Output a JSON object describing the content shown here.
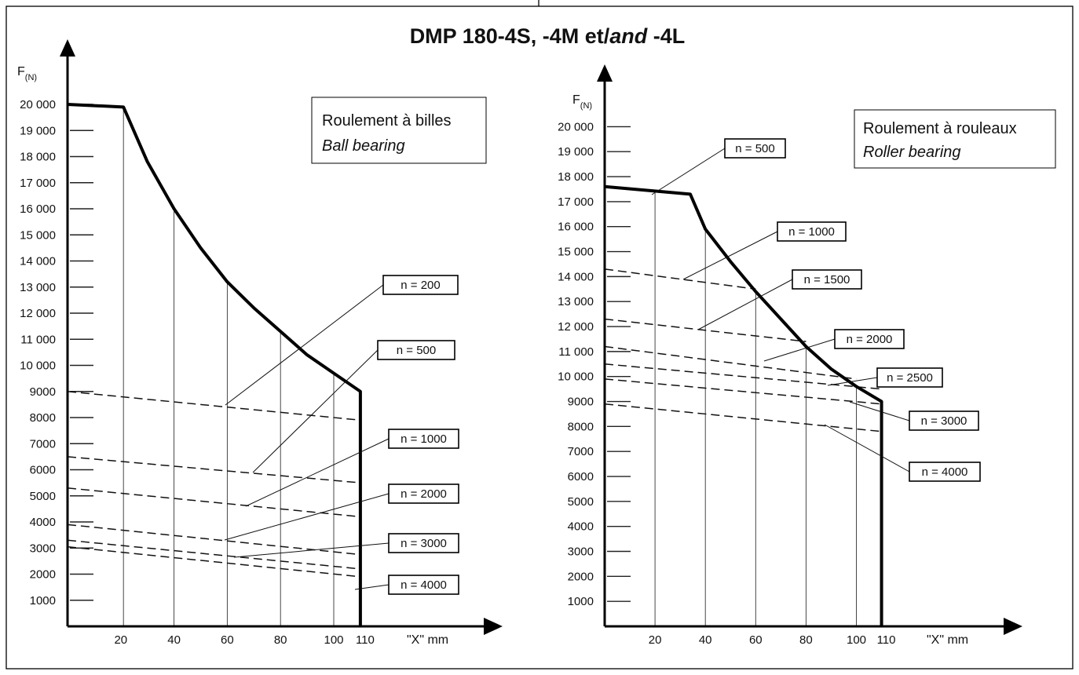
{
  "title_parts": [
    "DMP 180-4S, -4M et/",
    "and",
    " -4L"
  ],
  "chart_data": [
    {
      "type": "line",
      "ylabel_main": "F",
      "ylabel_sub": "(N)",
      "xlabel": "\"X\" mm",
      "legend": [
        "Roulement à billes",
        "Ball bearing"
      ],
      "xlim": [
        0,
        110
      ],
      "ylim": [
        0,
        20000
      ],
      "x_ticks": [
        20,
        40,
        60,
        80,
        100,
        110
      ],
      "y_ticks": [
        1000,
        2000,
        3000,
        4000,
        5000,
        6000,
        7000,
        8000,
        9000,
        10000,
        11000,
        12000,
        13000,
        14000,
        15000,
        16000,
        17000,
        18000,
        19000,
        20000
      ],
      "y_tick_labels": [
        "1000",
        "2000",
        "3000",
        "4000",
        "5000",
        "6000",
        "7000",
        "8000",
        "9000",
        "10 000",
        "11 000",
        "12 000",
        "13 000",
        "14 000",
        "15 000",
        "16 000",
        "17 000",
        "18 000",
        "19 000",
        "20 000"
      ],
      "limit_curve": {
        "name": "",
        "x": [
          0,
          21,
          30,
          40,
          50,
          60,
          70,
          80,
          90,
          100,
          110,
          110
        ],
        "y": [
          20000,
          19900,
          17800,
          16000,
          14500,
          13200,
          12200,
          11300,
          10400,
          9700,
          9000,
          0
        ]
      },
      "series": [
        {
          "name": "n = 200",
          "x": [
            0,
            110
          ],
          "y": [
            9000,
            7900
          ]
        },
        {
          "name": "n = 500",
          "x": [
            0,
            110
          ],
          "y": [
            6500,
            5500
          ]
        },
        {
          "name": "n = 1000",
          "x": [
            0,
            110
          ],
          "y": [
            5300,
            4200
          ]
        },
        {
          "name": "n = 2000",
          "x": [
            0,
            110
          ],
          "y": [
            3900,
            2750
          ]
        },
        {
          "name": "n = 3000",
          "x": [
            0,
            110
          ],
          "y": [
            3300,
            2200
          ]
        },
        {
          "name": "n = 4000",
          "x": [
            0,
            110
          ],
          "y": [
            3050,
            1900
          ]
        }
      ],
      "gridlines_x": [
        21,
        40,
        60,
        80,
        100
      ]
    },
    {
      "type": "line",
      "ylabel_main": "F",
      "ylabel_sub": "(N)",
      "xlabel": "\"X\" mm",
      "legend": [
        "Roulement à rouleaux",
        "Roller bearing"
      ],
      "xlim": [
        0,
        110
      ],
      "ylim": [
        0,
        20000
      ],
      "x_ticks": [
        20,
        40,
        60,
        80,
        100,
        110
      ],
      "y_ticks": [
        1000,
        2000,
        3000,
        4000,
        5000,
        6000,
        7000,
        8000,
        9000,
        10000,
        11000,
        12000,
        13000,
        14000,
        15000,
        16000,
        17000,
        18000,
        19000,
        20000
      ],
      "y_tick_labels": [
        "1000",
        "2000",
        "3000",
        "4000",
        "5000",
        "6000",
        "7000",
        "8000",
        "9000",
        "10 000",
        "11 000",
        "12 000",
        "13 000",
        "14 000",
        "15 000",
        "16 000",
        "17 000",
        "18 000",
        "19 000",
        "20 000"
      ],
      "limit_curve": {
        "name": "n = 500",
        "x": [
          0,
          34,
          40,
          50,
          60,
          70,
          80,
          90,
          100,
          110,
          110
        ],
        "y": [
          17600,
          17300,
          15900,
          14600,
          13400,
          12300,
          11200,
          10300,
          9600,
          9000,
          0
        ]
      },
      "series": [
        {
          "name": "n = 1000",
          "x": [
            0,
            60
          ],
          "y": [
            14300,
            13500
          ]
        },
        {
          "name": "n = 1500",
          "x": [
            0,
            80
          ],
          "y": [
            12300,
            11400
          ]
        },
        {
          "name": "n = 2000",
          "x": [
            0,
            100
          ],
          "y": [
            11200,
            9900
          ]
        },
        {
          "name": "n = 2500",
          "x": [
            0,
            110
          ],
          "y": [
            10500,
            9500
          ]
        },
        {
          "name": "n = 3000",
          "x": [
            0,
            110
          ],
          "y": [
            9900,
            8900
          ]
        },
        {
          "name": "n = 4000",
          "x": [
            0,
            110
          ],
          "y": [
            8900,
            7800
          ]
        }
      ],
      "gridlines_x": [
        20,
        40,
        60,
        80,
        100
      ]
    }
  ]
}
